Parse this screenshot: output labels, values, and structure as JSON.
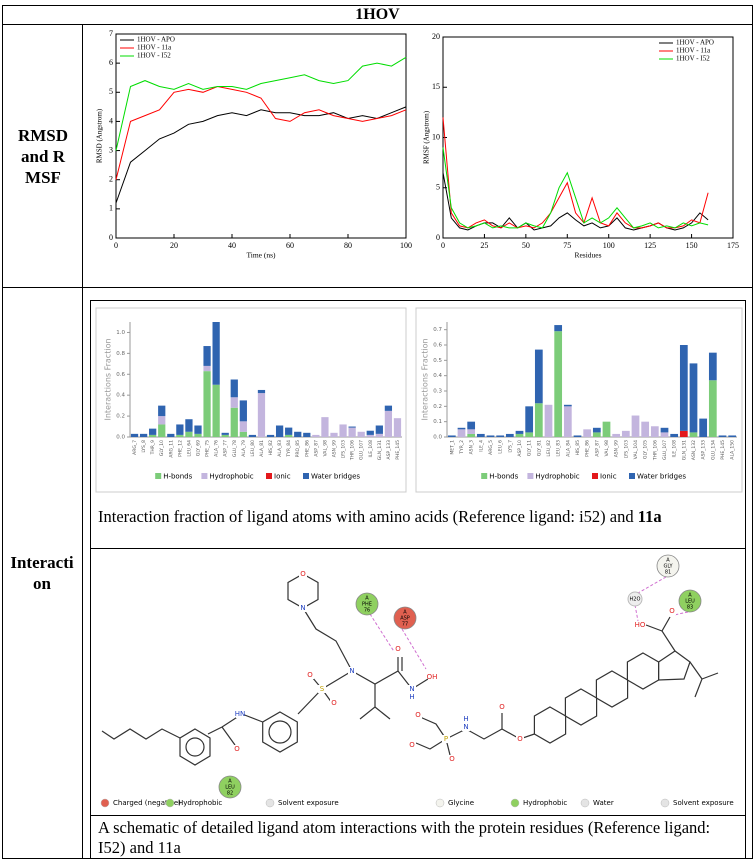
{
  "table": {
    "header": "1HOV",
    "rows": [
      {
        "label": "RMSD and RMSF"
      },
      {
        "label": "Interaction",
        "caption_top": [
          "Interaction fraction of ligand atoms with amino acids (Reference ligand: i52) and",
          "11a"
        ],
        "caption_bottom": "A schematic of detailed ligand atom interactions with the protein residues (Reference ligand: I52) and 11a"
      }
    ]
  },
  "chart_data": [
    {
      "type": "line",
      "xlabel": "Time (ns)",
      "ylabel": "RMSD (Angstrom)",
      "legend": "upper left",
      "x": [
        0,
        5,
        10,
        15,
        20,
        25,
        30,
        35,
        40,
        45,
        50,
        55,
        60,
        65,
        70,
        75,
        80,
        85,
        90,
        95,
        100
      ],
      "xlim": [
        0,
        100
      ],
      "xticks": [
        0,
        20,
        40,
        60,
        80,
        100
      ],
      "ylim": [
        0,
        7
      ],
      "yticks": [
        0,
        1,
        2,
        3,
        4,
        5,
        6,
        7
      ],
      "series": [
        {
          "name": "1HOV - APO",
          "color": "#000000",
          "values": [
            1.2,
            2.6,
            3.0,
            3.4,
            3.6,
            3.9,
            4.0,
            4.2,
            4.3,
            4.2,
            4.4,
            4.3,
            4.3,
            4.2,
            4.2,
            4.3,
            4.1,
            4.2,
            4.1,
            4.3,
            4.5
          ]
        },
        {
          "name": "1HOV - 11a",
          "color": "#ff0000",
          "values": [
            2.0,
            4.0,
            4.2,
            4.4,
            5.0,
            5.1,
            5.0,
            5.2,
            5.1,
            5.0,
            4.8,
            4.1,
            4.0,
            4.3,
            4.4,
            4.2,
            4.1,
            4.0,
            4.1,
            4.2,
            4.4
          ]
        },
        {
          "name": "1HOV - I52",
          "color": "#00dd00",
          "values": [
            3.0,
            5.2,
            5.4,
            5.2,
            5.1,
            5.3,
            5.1,
            5.2,
            5.2,
            5.1,
            5.3,
            5.4,
            5.5,
            5.6,
            5.4,
            5.3,
            5.4,
            5.9,
            6.0,
            5.9,
            6.2
          ]
        }
      ]
    },
    {
      "type": "line",
      "xlabel": "Residues",
      "ylabel": "RMSF (Angstrom)",
      "legend": "upper right",
      "x": [
        0,
        5,
        10,
        15,
        20,
        25,
        30,
        35,
        40,
        45,
        50,
        55,
        60,
        65,
        70,
        75,
        80,
        85,
        90,
        95,
        100,
        105,
        110,
        115,
        120,
        125,
        130,
        135,
        140,
        145,
        150,
        155,
        160
      ],
      "xlim": [
        0,
        175
      ],
      "xticks": [
        0,
        25,
        50,
        75,
        100,
        125,
        150,
        175
      ],
      "ylim": [
        0,
        20
      ],
      "yticks": [
        0,
        5,
        10,
        15,
        20
      ],
      "series": [
        {
          "name": "1HOV - APO",
          "color": "#000000",
          "values": [
            6.5,
            2.0,
            1.0,
            0.8,
            1.2,
            1.5,
            1.5,
            1.0,
            2.0,
            1.0,
            1.5,
            0.8,
            1.0,
            1.2,
            2.0,
            2.5,
            1.8,
            1.2,
            1.5,
            1.0,
            1.2,
            2.0,
            1.0,
            0.8,
            1.0,
            1.2,
            1.5,
            1.0,
            0.8,
            1.0,
            1.5,
            2.5,
            1.8
          ]
        },
        {
          "name": "1HOV - 11a",
          "color": "#ff0000",
          "values": [
            12.0,
            2.5,
            1.2,
            1.0,
            1.5,
            1.8,
            1.2,
            1.0,
            1.5,
            1.0,
            1.2,
            1.0,
            1.5,
            2.5,
            4.0,
            5.5,
            2.5,
            1.5,
            4.0,
            1.5,
            1.2,
            2.5,
            1.5,
            1.0,
            1.0,
            1.2,
            1.5,
            1.0,
            1.0,
            1.2,
            1.8,
            1.5,
            4.5
          ]
        },
        {
          "name": "1HOV - I52",
          "color": "#00dd00",
          "values": [
            9.0,
            3.0,
            1.5,
            1.0,
            1.2,
            1.5,
            1.0,
            1.2,
            1.0,
            1.0,
            1.5,
            1.2,
            1.0,
            2.5,
            5.0,
            6.5,
            4.0,
            1.5,
            2.0,
            1.5,
            2.0,
            3.0,
            2.0,
            1.0,
            1.2,
            1.5,
            1.0,
            1.2,
            1.0,
            1.5,
            1.2,
            1.5,
            1.3
          ]
        }
      ]
    },
    {
      "type": "stacked-bar",
      "ylabel": "Interactions Fraction",
      "legend": "lower center",
      "categories": [
        "ARG_7",
        "LYS_8",
        "THR_9",
        "GLY_10",
        "ARG_11",
        "PHE_12",
        "LEU_64",
        "GLY_69",
        "PHE_75",
        "ALA_76",
        "ASP_77",
        "GLU_78",
        "ALA_79",
        "LEU_80",
        "ALA_81",
        "HIS_82",
        "ALA_83",
        "TYR_84",
        "PRO_85",
        "PHE_86",
        "ASP_87",
        "VAL_98",
        "ASN_99",
        "LYS_103",
        "THR_106",
        "GLU_107",
        "ILE_108",
        "GLN_131",
        "ASP_133",
        "PHE_145"
      ],
      "ylim": [
        0,
        1.1
      ],
      "yticks": [
        {
          "value": 0,
          "label": "0.0"
        },
        {
          "value": 0.2,
          "label": "0.2"
        },
        {
          "value": 0.4,
          "label": "0.4"
        },
        {
          "value": 0.6,
          "label": "0.6"
        },
        {
          "value": 0.8,
          "label": "0.8"
        },
        {
          "value": 1,
          "label": "1.0"
        }
      ],
      "series": [
        {
          "name": "H-bonds",
          "color": "#7ccc79",
          "values": [
            0,
            0,
            0.02,
            0.12,
            0,
            0.02,
            0.05,
            0.03,
            0.63,
            0.5,
            0.02,
            0.28,
            0.05,
            0,
            0,
            0,
            0,
            0.02,
            0,
            0,
            0,
            0,
            0,
            0,
            0,
            0,
            0,
            0,
            0,
            0
          ]
        },
        {
          "name": "Hydrophobic",
          "color": "#c3b5de",
          "values": [
            0,
            0,
            0,
            0.08,
            0,
            0,
            0,
            0,
            0.05,
            0,
            0,
            0.1,
            0.1,
            0,
            0.42,
            0,
            0,
            0,
            0,
            0,
            0.02,
            0.19,
            0.04,
            0.12,
            0.09,
            0.05,
            0.02,
            0.03,
            0.25,
            0.18
          ]
        },
        {
          "name": "Ionic",
          "color": "#e3181c",
          "values": [
            0,
            0,
            0,
            0,
            0,
            0,
            0,
            0,
            0,
            0,
            0,
            0,
            0,
            0,
            0,
            0,
            0,
            0,
            0,
            0,
            0,
            0,
            0,
            0,
            0,
            0,
            0,
            0,
            0,
            0
          ]
        },
        {
          "name": "Water bridges",
          "color": "#2f64b0",
          "values": [
            0.03,
            0.03,
            0.06,
            0.1,
            0.03,
            0.1,
            0.12,
            0.08,
            0.19,
            0.6,
            0.02,
            0.17,
            0.2,
            0.02,
            0.03,
            0.02,
            0.11,
            0.07,
            0.05,
            0.04,
            0,
            0,
            0,
            0,
            0.01,
            0,
            0.04,
            0.08,
            0.05,
            0
          ]
        }
      ]
    },
    {
      "type": "stacked-bar",
      "ylabel": "Interactions Fraction",
      "legend": "lower center",
      "categories": [
        "MET_1",
        "TYR_2",
        "ASN_3",
        "ILE_4",
        "ARG_5",
        "LEU_6",
        "LYS_7",
        "ASP_10",
        "GLY_11",
        "GLY_81",
        "LEU_82",
        "LEU_83",
        "ALA_84",
        "HIS_85",
        "PHE_86",
        "ASP_87",
        "VAL_98",
        "ASN_99",
        "LYS_103",
        "VAL_104",
        "GLY_105",
        "THR_106",
        "GLU_107",
        "ILE_108",
        "GLN_131",
        "ASN_132",
        "ASP_133",
        "GLU_134",
        "PHE_145",
        "ALA_150"
      ],
      "ylim": [
        0,
        0.75
      ],
      "yticks": [
        {
          "value": 0,
          "label": "0.0"
        },
        {
          "value": 0.1,
          "label": "0.1"
        },
        {
          "value": 0.2,
          "label": "0.2"
        },
        {
          "value": 0.3,
          "label": "0.3"
        },
        {
          "value": 0.4,
          "label": "0.4"
        },
        {
          "value": 0.5,
          "label": "0.5"
        },
        {
          "value": 0.6,
          "label": "0.6"
        },
        {
          "value": 0.7,
          "label": "0.7"
        }
      ],
      "series": [
        {
          "name": "H-bonds",
          "color": "#7ccc79",
          "values": [
            0,
            0,
            0.02,
            0,
            0,
            0,
            0,
            0.02,
            0.03,
            0.22,
            0,
            0.69,
            0,
            0,
            0,
            0.03,
            0.1,
            0,
            0,
            0,
            0,
            0,
            0,
            0,
            0,
            0.03,
            0,
            0.37,
            0,
            0
          ]
        },
        {
          "name": "Hydrophobic",
          "color": "#c3b5de",
          "values": [
            0,
            0.05,
            0.03,
            0,
            0,
            0,
            0,
            0,
            0,
            0,
            0.21,
            0,
            0.2,
            0,
            0.05,
            0,
            0,
            0.02,
            0.04,
            0.14,
            0.1,
            0.07,
            0.03,
            0,
            0,
            0,
            0,
            0,
            0,
            0
          ]
        },
        {
          "name": "Ionic",
          "color": "#e3181c",
          "values": [
            0,
            0,
            0,
            0,
            0,
            0,
            0,
            0,
            0,
            0,
            0,
            0,
            0,
            0,
            0,
            0,
            0,
            0,
            0,
            0,
            0,
            0,
            0,
            0,
            0.04,
            0,
            0,
            0,
            0,
            0
          ]
        },
        {
          "name": "Water bridges",
          "color": "#2f64b0",
          "values": [
            0.01,
            0.01,
            0.05,
            0.02,
            0.01,
            0.01,
            0.02,
            0.02,
            0.17,
            0.35,
            0,
            0.04,
            0.01,
            0.01,
            0,
            0.03,
            0,
            0,
            0,
            0,
            0,
            0,
            0.03,
            0.02,
            0.56,
            0.45,
            0.12,
            0.18,
            0.01,
            0.01
          ]
        }
      ]
    }
  ],
  "ligands": [
    {
      "residues": [
        {
          "chain": "A",
          "name": "PHE",
          "number": "76"
        },
        {
          "chain": "A",
          "name": "ASP",
          "number": "77"
        },
        {
          "chain": "A",
          "name": "LEU",
          "number": "82"
        }
      ],
      "atoms": [
        "O",
        "N",
        "N",
        "S",
        "O",
        "O",
        "HN",
        "O",
        "O",
        "N",
        "H",
        "OH"
      ],
      "legend": [
        "Charged (negative)",
        "Hydrophobic",
        "Solvent exposure"
      ]
    },
    {
      "residues": [
        {
          "chain": "A",
          "name": "GLY",
          "number": "81"
        },
        {
          "chain": "A",
          "name": "LEU",
          "number": "83"
        }
      ],
      "water": "H2O",
      "atoms": [
        "HO",
        "O",
        "O",
        "O",
        "N",
        "H",
        "P",
        "O",
        "O",
        "O"
      ],
      "legend": [
        "Glycine",
        "Hydrophobic",
        "Water",
        "Solvent exposure"
      ]
    }
  ]
}
